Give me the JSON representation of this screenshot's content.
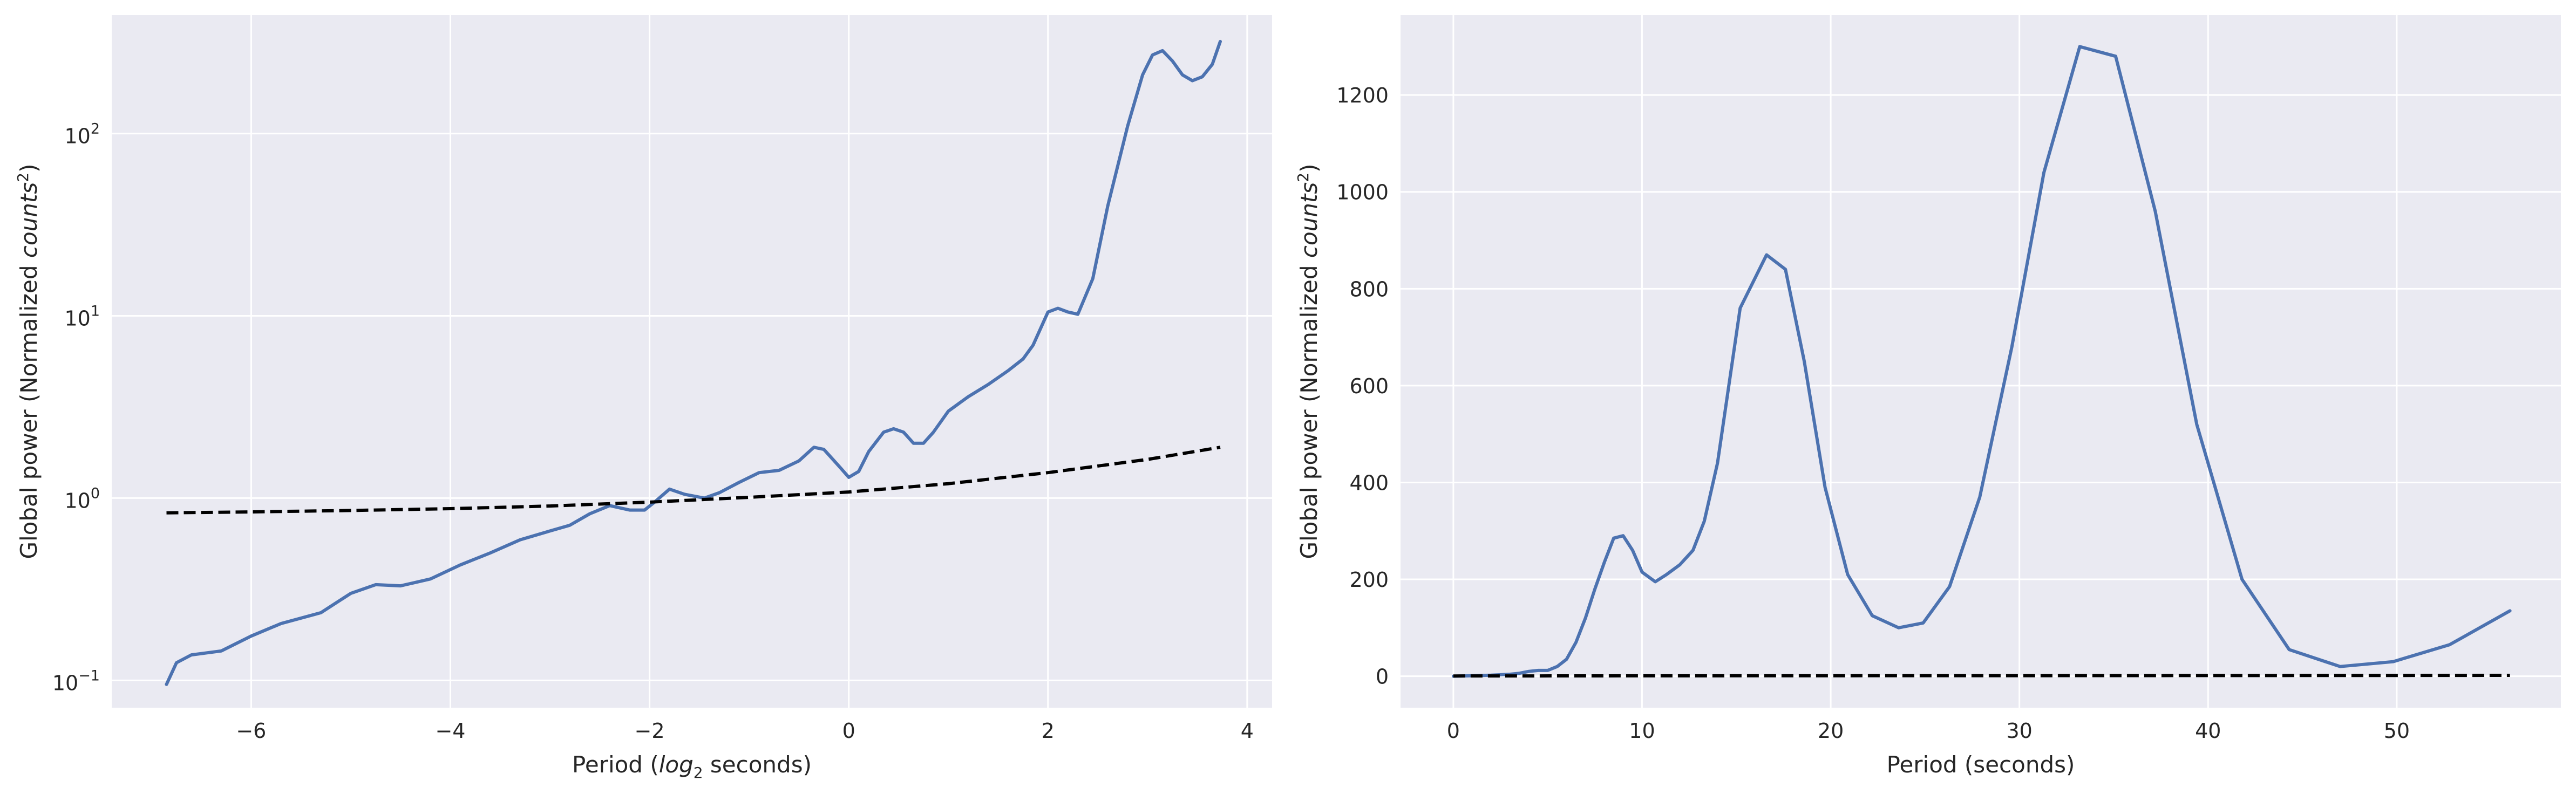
{
  "chart_data": [
    {
      "type": "line",
      "xlabel_parts": [
        "Period (",
        "log",
        "2",
        " seconds)"
      ],
      "ylabel_parts": [
        "Global power (Normalized ",
        "counts",
        "2",
        ")"
      ],
      "y_scale": "log",
      "xlim": [
        -7.4,
        4.25
      ],
      "ylim_log10": [
        -1.15,
        2.65
      ],
      "xticks": [
        {
          "value": -6,
          "label": "−6"
        },
        {
          "value": -4,
          "label": "−4"
        },
        {
          "value": -2,
          "label": "−2"
        },
        {
          "value": 0,
          "label": "0"
        },
        {
          "value": 2,
          "label": "2"
        },
        {
          "value": 4,
          "label": "4"
        }
      ],
      "yticks": [
        {
          "exp": -1,
          "base": "10",
          "sup": "−1"
        },
        {
          "exp": 0,
          "base": "10",
          "sup": "0"
        },
        {
          "exp": 1,
          "base": "10",
          "sup": "1"
        },
        {
          "exp": 2,
          "base": "10",
          "sup": "2"
        }
      ],
      "grid": true,
      "background": "#eaeaf2",
      "series": [
        {
          "style": "solid",
          "color": "#4c72b0",
          "x": [
            -6.85,
            -6.75,
            -6.6,
            -6.3,
            -6.0,
            -5.7,
            -5.3,
            -5.0,
            -4.75,
            -4.5,
            -4.2,
            -3.9,
            -3.6,
            -3.3,
            -3.0,
            -2.8,
            -2.6,
            -2.4,
            -2.2,
            -2.05,
            -1.95,
            -1.8,
            -1.65,
            -1.45,
            -1.3,
            -1.1,
            -0.9,
            -0.7,
            -0.5,
            -0.35,
            -0.25,
            -0.1,
            0.0,
            0.1,
            0.2,
            0.35,
            0.45,
            0.55,
            0.65,
            0.75,
            0.85,
            1.0,
            1.2,
            1.4,
            1.6,
            1.75,
            1.85,
            2.0,
            2.1,
            2.2,
            2.3,
            2.45,
            2.6,
            2.8,
            2.95,
            3.05,
            3.15,
            3.25,
            3.35,
            3.45,
            3.55,
            3.65,
            3.73
          ],
          "y": [
            0.095,
            0.125,
            0.138,
            0.145,
            0.175,
            0.205,
            0.235,
            0.3,
            0.335,
            0.33,
            0.36,
            0.43,
            0.5,
            0.59,
            0.66,
            0.71,
            0.82,
            0.91,
            0.86,
            0.86,
            0.95,
            1.12,
            1.05,
            1.0,
            1.07,
            1.22,
            1.38,
            1.42,
            1.6,
            1.9,
            1.85,
            1.5,
            1.3,
            1.4,
            1.8,
            2.3,
            2.4,
            2.3,
            2.0,
            2.0,
            2.3,
            3.0,
            3.6,
            4.2,
            5.0,
            5.8,
            6.9,
            10.5,
            11.0,
            10.5,
            10.2,
            16.0,
            40.0,
            110.0,
            210.0,
            270.0,
            285.0,
            250.0,
            210.0,
            195.0,
            205.0,
            240.0,
            320.0
          ]
        },
        {
          "style": "dashed",
          "color": "#000000",
          "x": [
            -6.85,
            -6.0,
            -5.0,
            -4.0,
            -3.0,
            -2.0,
            -1.0,
            0.0,
            1.0,
            2.0,
            3.0,
            3.73
          ],
          "y": [
            0.83,
            0.84,
            0.855,
            0.875,
            0.905,
            0.95,
            1.01,
            1.08,
            1.2,
            1.38,
            1.63,
            1.9
          ]
        }
      ]
    },
    {
      "type": "line",
      "xlabel": "Period (seconds)",
      "ylabel_parts": [
        "Global power (Normalized ",
        "counts",
        "2",
        ")"
      ],
      "y_scale": "linear",
      "xlim": [
        -2.8,
        58.7
      ],
      "ylim": [
        -65,
        1365
      ],
      "xticks": [
        {
          "value": 0,
          "label": "0"
        },
        {
          "value": 10,
          "label": "10"
        },
        {
          "value": 20,
          "label": "20"
        },
        {
          "value": 30,
          "label": "30"
        },
        {
          "value": 40,
          "label": "40"
        },
        {
          "value": 50,
          "label": "50"
        }
      ],
      "yticks": [
        {
          "value": 0,
          "label": "0"
        },
        {
          "value": 200,
          "label": "200"
        },
        {
          "value": 400,
          "label": "400"
        },
        {
          "value": 600,
          "label": "600"
        },
        {
          "value": 800,
          "label": "800"
        },
        {
          "value": 1000,
          "label": "1000"
        },
        {
          "value": 1200,
          "label": "1200"
        }
      ],
      "grid": true,
      "background": "#eaeaf2",
      "series": [
        {
          "style": "solid",
          "color": "#4c72b0",
          "x": [
            0.0,
            1.0,
            2.0,
            3.0,
            3.5,
            4.0,
            4.5,
            5.0,
            5.5,
            6.0,
            6.5,
            7.0,
            7.5,
            8.0,
            8.5,
            9.0,
            9.5,
            10.0,
            10.7,
            11.3,
            12.0,
            12.7,
            13.3,
            14.0,
            15.2,
            16.6,
            17.6,
            18.6,
            19.7,
            20.9,
            22.2,
            23.6,
            24.9,
            26.3,
            27.9,
            29.6,
            31.3,
            33.2,
            35.1,
            37.2,
            39.4,
            41.8,
            44.3,
            47.0,
            49.8,
            52.8,
            56.0
          ],
          "y": [
            0,
            1,
            2,
            4,
            6,
            10,
            12,
            12,
            20,
            35,
            70,
            120,
            180,
            235,
            285,
            290,
            260,
            215,
            195,
            210,
            230,
            260,
            320,
            440,
            760,
            870,
            840,
            650,
            390,
            210,
            125,
            100,
            110,
            185,
            370,
            680,
            1040,
            1300,
            1280,
            960,
            520,
            200,
            55,
            20,
            30,
            65,
            135
          ]
        },
        {
          "style": "dashed",
          "color": "#000000",
          "x": [
            0.0,
            10.0,
            20.0,
            30.0,
            40.0,
            50.0,
            56.0
          ],
          "y": [
            0.5,
            0.8,
            1.0,
            1.2,
            1.4,
            1.6,
            1.8
          ]
        }
      ]
    }
  ]
}
